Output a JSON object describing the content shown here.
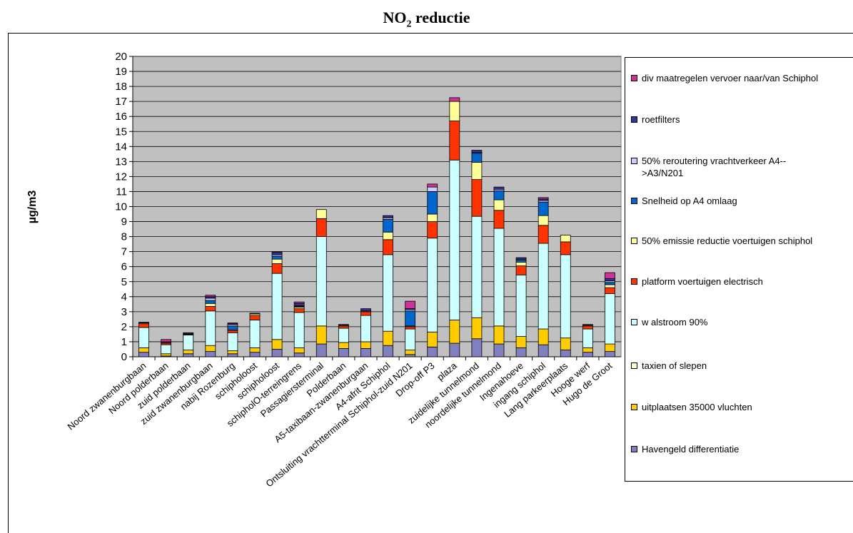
{
  "title": "NO",
  "title_sub": "2",
  "title_rest": " reductie",
  "chart_data": {
    "type": "bar",
    "stacked": true,
    "ylabel": "µg/m3",
    "xlabel": "",
    "ylim": [
      0,
      20
    ],
    "yticks": [
      0,
      1,
      2,
      3,
      4,
      5,
      6,
      7,
      8,
      9,
      10,
      11,
      12,
      13,
      14,
      15,
      16,
      17,
      18,
      19,
      20
    ],
    "grid": true,
    "legend_position": "right",
    "categories": [
      "Noord zwanenburgbaan",
      "Noord polderbaan",
      "zuid polderbaan",
      "zuid zwanenburgbaan",
      "nabij Rozenburg",
      "schipholoost",
      "schipholoost",
      "schipholO-terreingrens",
      "Passagiersterminal",
      "Polderbaan",
      "A5-taxibaan-zwanenburgaan",
      "A4-afrit Schiphol",
      "Ontsluiting vrachtterminal Schiphol-zuid N201",
      "Drop-off P3",
      "plaza",
      "zuidelijke tunnelmond",
      "noordelijke tunnelmond",
      "Ingenahoeve",
      "ingang schiphol",
      "Lang parkeerplaats",
      "Hooge werf",
      "Hugo de Groot"
    ],
    "series": [
      {
        "name": "Havengeld differentiatie",
        "color": "#8080c0",
        "values": [
          0.3,
          0.05,
          0.2,
          0.35,
          0.2,
          0.3,
          0.5,
          0.25,
          0.85,
          0.55,
          0.55,
          0.75,
          0.15,
          0.65,
          0.9,
          1.2,
          0.85,
          0.6,
          0.8,
          0.45,
          0.3,
          0.35
        ]
      },
      {
        "name": "uitplaatsen 35000 vluchten",
        "color": "#ffcc00",
        "values": [
          0.3,
          0.15,
          0.25,
          0.4,
          0.2,
          0.3,
          0.65,
          0.35,
          1.2,
          0.4,
          0.45,
          0.95,
          0.3,
          1.0,
          1.55,
          1.4,
          1.2,
          0.75,
          1.05,
          0.8,
          0.3,
          0.5
        ]
      },
      {
        "name": "w alstroom 90%",
        "color": "#ccffff",
        "values": [
          1.35,
          0.6,
          1.0,
          2.3,
          1.2,
          1.85,
          4.4,
          2.35,
          5.95,
          0.95,
          1.75,
          5.1,
          1.4,
          6.25,
          10.65,
          6.75,
          6.5,
          4.1,
          5.7,
          5.55,
          1.25,
          3.35
        ]
      },
      {
        "name": "platform voertuigen electrisch",
        "color": "#ff3300",
        "values": [
          0.25,
          0.1,
          0.05,
          0.3,
          0.15,
          0.3,
          0.65,
          0.25,
          1.2,
          0.15,
          0.25,
          1.0,
          0.15,
          1.1,
          2.6,
          2.45,
          1.2,
          0.6,
          1.2,
          0.85,
          0.2,
          0.4
        ]
      },
      {
        "name": "50% emissie reductie voertuigen schiphol",
        "color": "#ffff99",
        "values": [
          0.05,
          0.05,
          0.05,
          0.2,
          0.05,
          0.1,
          0.3,
          0.1,
          0.6,
          0.05,
          0.05,
          0.5,
          0.05,
          0.5,
          1.3,
          1.15,
          0.7,
          0.25,
          0.65,
          0.45,
          0.05,
          0.2
        ]
      },
      {
        "name": "Snelheid op A4 omlaag",
        "color": "#0066cc",
        "values": [
          0,
          0,
          0,
          0.2,
          0.25,
          0,
          0.2,
          0.05,
          0,
          0,
          0,
          0.85,
          1.0,
          1.5,
          0,
          0.6,
          0.6,
          0.15,
          0.9,
          0,
          0,
          0.15
        ]
      },
      {
        "name": "50% reroutering vrachtverkeer A4-->A3/N201",
        "color": "#ccccff",
        "values": [
          0,
          0,
          0,
          0.15,
          0.1,
          0,
          0.1,
          0.05,
          0,
          0,
          0,
          0.1,
          0.1,
          0.3,
          0,
          0.05,
          0.1,
          0.05,
          0.1,
          0,
          0,
          0.1
        ]
      },
      {
        "name": "roetfilters",
        "color": "#333399",
        "values": [
          0.05,
          0.05,
          0.05,
          0.1,
          0.05,
          0.05,
          0.15,
          0.15,
          0,
          0.05,
          0.15,
          0.15,
          0.05,
          0,
          0,
          0.15,
          0.15,
          0.1,
          0.1,
          0,
          0.05,
          0.15
        ]
      },
      {
        "name": "div maatregelen vervoer naar/van Schiphol",
        "color": "#cc3399",
        "values": [
          0,
          0.15,
          0,
          0.1,
          0.05,
          0,
          0.05,
          0.1,
          0,
          0,
          0,
          0,
          0.5,
          0.2,
          0.25,
          0,
          0,
          0,
          0.1,
          0,
          0,
          0.4
        ]
      }
    ]
  },
  "legend": {
    "items": [
      {
        "label": "div maatregelen vervoer naar/van Schiphol",
        "color": "#cc3399"
      },
      {
        "label": "roetfilters",
        "color": "#333399"
      },
      {
        "label": "50% reroutering vrachtverkeer A4-->A3/N201",
        "color": "#ccccff"
      },
      {
        "label": "Snelheid op A4 omlaag",
        "color": "#0066cc"
      },
      {
        "label": "50% emissie reductie voertuigen schiphol",
        "color": "#ffff99"
      },
      {
        "label": "platform voertuigen electrisch",
        "color": "#ff3300"
      },
      {
        "label": "w alstroom 90%",
        "color": "#ccffff"
      },
      {
        "label": "taxien of slepen",
        "color": "#ffffcc"
      },
      {
        "label": "uitplaatsen 35000 vluchten",
        "color": "#ffcc00"
      },
      {
        "label": "Havengeld differentiatie",
        "color": "#8080c0"
      }
    ]
  }
}
